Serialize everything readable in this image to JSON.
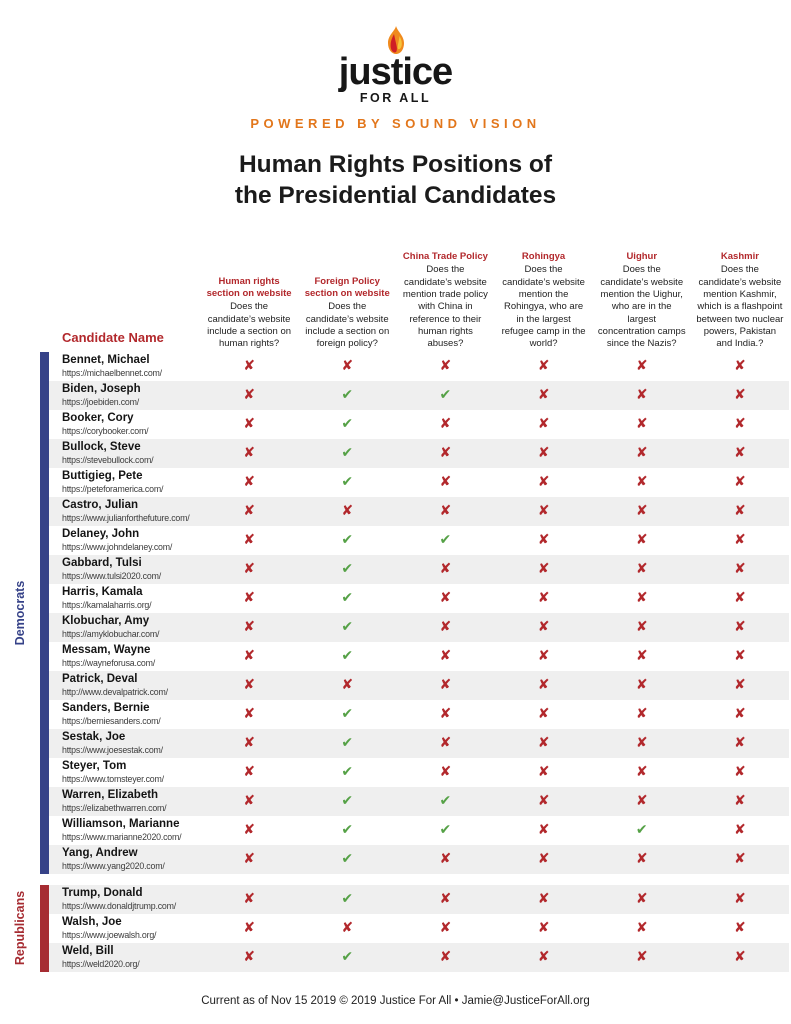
{
  "logo": {
    "brand": "justice",
    "sub": "FOR ALL",
    "tagline": "POWERED BY SOUND VISION"
  },
  "title": {
    "line1": "Human Rights Positions of",
    "line2": "the Presidential Candidates"
  },
  "table": {
    "name_header": "Candidate Name",
    "columns": [
      {
        "title": "Human rights section on website",
        "question": "Does the candidate’s website include a section on human rights?"
      },
      {
        "title": "Foreign Policy section on website",
        "question": "Does the candidate’s website include a section on foreign policy?"
      },
      {
        "title": "China Trade Policy",
        "question": "Does the candidate’s website mention trade policy with China in reference to their human rights abuses?"
      },
      {
        "title": "Rohingya",
        "question": "Does the candidate’s website mention the Rohingya, who are in the largest refugee camp in the world?"
      },
      {
        "title": "Uighur",
        "question": "Does the candidate’s website mention the Uighur, who are in the largest concentration camps since the Nazis?"
      },
      {
        "title": "Kashmir",
        "question": "Does the candidate’s website mention Kashmir, which is a flashpoint between two nuclear powers, Pakistan and India.?"
      }
    ],
    "groups": [
      {
        "name": "Democrats",
        "color": "#364288",
        "stripe": "even",
        "rows": [
          {
            "name": "Bennet, Michael",
            "url": "https://michaelbennet.com/",
            "marks": [
              "x",
              "x",
              "x",
              "x",
              "x",
              "x"
            ]
          },
          {
            "name": "Biden, Joseph",
            "url": "https://joebiden.com/",
            "marks": [
              "x",
              "check",
              "check",
              "x",
              "x",
              "x"
            ]
          },
          {
            "name": "Booker, Cory",
            "url": "https://corybooker.com/",
            "marks": [
              "x",
              "check",
              "x",
              "x",
              "x",
              "x"
            ]
          },
          {
            "name": "Bullock, Steve",
            "url": "https://stevebullock.com/",
            "marks": [
              "x",
              "check",
              "x",
              "x",
              "x",
              "x"
            ]
          },
          {
            "name": "Buttigieg, Pete",
            "url": "https://peteforamerica.com/",
            "marks": [
              "x",
              "check",
              "x",
              "x",
              "x",
              "x"
            ]
          },
          {
            "name": "Castro, Julian",
            "url": "https://www.julianforthefuture.com/",
            "marks": [
              "x",
              "x",
              "x",
              "x",
              "x",
              "x"
            ]
          },
          {
            "name": "Delaney, John",
            "url": "https://www.johndelaney.com/",
            "marks": [
              "x",
              "check",
              "check",
              "x",
              "x",
              "x"
            ]
          },
          {
            "name": "Gabbard, Tulsi",
            "url": "https://www.tulsi2020.com/",
            "marks": [
              "x",
              "check",
              "x",
              "x",
              "x",
              "x"
            ]
          },
          {
            "name": "Harris, Kamala",
            "url": "https://kamalaharris.org/",
            "marks": [
              "x",
              "check",
              "x",
              "x",
              "x",
              "x"
            ]
          },
          {
            "name": "Klobuchar, Amy",
            "url": "https://amyklobuchar.com/",
            "marks": [
              "x",
              "check",
              "x",
              "x",
              "x",
              "x"
            ]
          },
          {
            "name": "Messam, Wayne",
            "url": "https://wayneforusa.com/",
            "marks": [
              "x",
              "check",
              "x",
              "x",
              "x",
              "x"
            ]
          },
          {
            "name": "Patrick, Deval",
            "url": "http://www.devalpatrick.com/",
            "marks": [
              "x",
              "x",
              "x",
              "x",
              "x",
              "x"
            ]
          },
          {
            "name": "Sanders, Bernie",
            "url": "https://berniesanders.com/",
            "marks": [
              "x",
              "check",
              "x",
              "x",
              "x",
              "x"
            ]
          },
          {
            "name": "Sestak, Joe",
            "url": "https://www.joesestak.com/",
            "marks": [
              "x",
              "check",
              "x",
              "x",
              "x",
              "x"
            ]
          },
          {
            "name": "Steyer, Tom",
            "url": "https://www.tomsteyer.com/",
            "marks": [
              "x",
              "check",
              "x",
              "x",
              "x",
              "x"
            ]
          },
          {
            "name": "Warren, Elizabeth",
            "url": "https://elizabethwarren.com/",
            "marks": [
              "x",
              "check",
              "check",
              "x",
              "x",
              "x"
            ]
          },
          {
            "name": "Williamson, Marianne",
            "url": "https://www.marianne2020.com/",
            "marks": [
              "x",
              "check",
              "check",
              "x",
              "check",
              "x"
            ]
          },
          {
            "name": "Yang, Andrew",
            "url": "https://www.yang2020.com/",
            "marks": [
              "x",
              "check",
              "x",
              "x",
              "x",
              "x"
            ]
          }
        ]
      },
      {
        "name": "Republicans",
        "color": "#A62C32",
        "stripe": "odd",
        "rows": [
          {
            "name": "Trump, Donald",
            "url": "https://www.donaldjtrump.com/",
            "marks": [
              "x",
              "check",
              "x",
              "x",
              "x",
              "x"
            ]
          },
          {
            "name": "Walsh, Joe",
            "url": "https://www.joewalsh.org/",
            "marks": [
              "x",
              "x",
              "x",
              "x",
              "x",
              "x"
            ]
          },
          {
            "name": "Weld, Bill",
            "url": "https://weld2020.org/",
            "marks": [
              "x",
              "check",
              "x",
              "x",
              "x",
              "x"
            ]
          }
        ]
      }
    ]
  },
  "icons": {
    "x": "✘",
    "check": "✔"
  },
  "colors": {
    "accent_red": "#B2282C",
    "check_green": "#55A146",
    "tagline_orange": "#E2761B",
    "stripe_gray": "#EFEFEF",
    "democrats_bar": "#364288",
    "republicans_bar": "#A62C32"
  },
  "footer": {
    "text": "Current as of Nov 15 2019 © 2019 Justice For All • Jamie@JusticeForAll.org"
  }
}
